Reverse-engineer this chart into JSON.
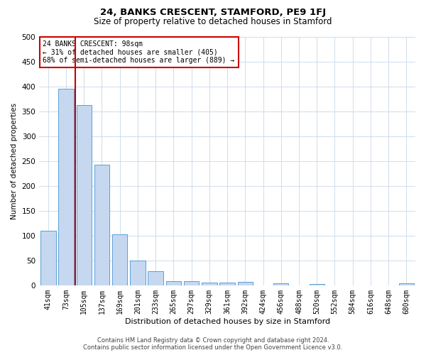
{
  "title": "24, BANKS CRESCENT, STAMFORD, PE9 1FJ",
  "subtitle": "Size of property relative to detached houses in Stamford",
  "xlabel": "Distribution of detached houses by size in Stamford",
  "ylabel": "Number of detached properties",
  "categories": [
    "41sqm",
    "73sqm",
    "105sqm",
    "137sqm",
    "169sqm",
    "201sqm",
    "233sqm",
    "265sqm",
    "297sqm",
    "329sqm",
    "361sqm",
    "392sqm",
    "424sqm",
    "456sqm",
    "488sqm",
    "520sqm",
    "552sqm",
    "584sqm",
    "616sqm",
    "648sqm",
    "680sqm"
  ],
  "values": [
    110,
    395,
    362,
    242,
    103,
    50,
    29,
    9,
    8,
    5,
    5,
    7,
    0,
    4,
    0,
    3,
    0,
    0,
    0,
    0,
    4
  ],
  "bar_color": "#c5d8f0",
  "bar_edge_color": "#5a9fd4",
  "marker_line_color": "#cc0000",
  "annotation_line1": "24 BANKS CRESCENT: 98sqm",
  "annotation_line2": "← 31% of detached houses are smaller (405)",
  "annotation_line3": "68% of semi-detached houses are larger (889) →",
  "annotation_box_color": "#cc0000",
  "ylim": [
    0,
    500
  ],
  "yticks": [
    0,
    50,
    100,
    150,
    200,
    250,
    300,
    350,
    400,
    450,
    500
  ],
  "background_color": "#ffffff",
  "grid_color": "#c8d8e8",
  "footer_line1": "Contains HM Land Registry data © Crown copyright and database right 2024.",
  "footer_line2": "Contains public sector information licensed under the Open Government Licence v3.0."
}
